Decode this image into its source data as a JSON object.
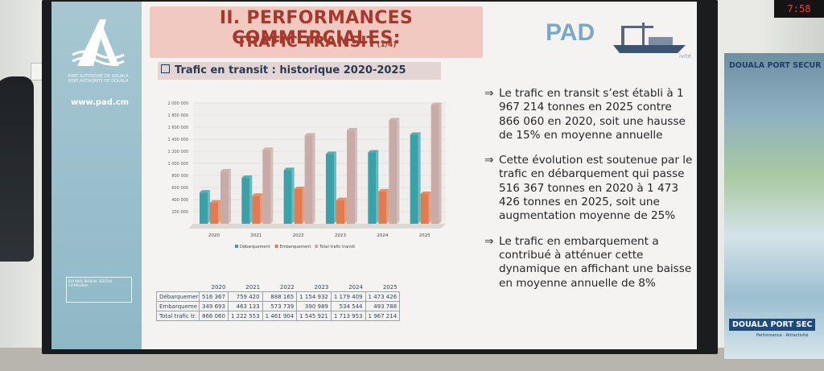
{
  "slide": {
    "title_line1": "II. PERFORMANCES COMMERCIALES:",
    "title_line2": "TRAFIC TRANSIT",
    "title_suffix": "(1/4)",
    "subtitle": "Trafic en transit : historique 2020-2025",
    "url": "www.pad.cm",
    "logo_line1": "PORT AUTONOME DE DOUALA",
    "logo_line2": "PORT AUTHORITY OF DOUALA",
    "brand_word": "PAD",
    "brand_fragment": "ivité",
    "cert_text": "ISO 9001 BUREAU VERITAS Certification"
  },
  "chart_data": {
    "type": "bar",
    "categories": [
      "2020",
      "2021",
      "2022",
      "2023",
      "2024",
      "2025"
    ],
    "series": [
      {
        "name": "Débarquement",
        "color": "#3aa1a8",
        "values": [
          516367,
          759420,
          888165,
          1154932,
          1179409,
          1473426
        ]
      },
      {
        "name": "Embarquement",
        "color": "#e07b52",
        "values": [
          349693,
          463133,
          573739,
          390989,
          534544,
          493788
        ]
      },
      {
        "name": "Total trafic transit",
        "color": "#c8aaa6",
        "values": [
          866060,
          1222553,
          1461904,
          1545921,
          1713953,
          1967214
        ]
      }
    ],
    "y_ticks": [
      "200 000",
      "400 000",
      "600 000",
      "800 000",
      "1 000 000",
      "1 200 000",
      "1 400 000",
      "1 600 000",
      "1 800 000",
      "2 000 000"
    ],
    "ylim": [
      0,
      2000000
    ],
    "legend_position": "bottom",
    "grid": true
  },
  "table": {
    "years": [
      "2020",
      "2021",
      "2022",
      "2023",
      "2024",
      "2025"
    ],
    "rows": [
      {
        "label": "Débarquemer",
        "values": [
          "516 367",
          "759 420",
          "888 165",
          "1 154 932",
          "1 179 409",
          "1 473 426"
        ]
      },
      {
        "label": "Embarqueme",
        "values": [
          "349 693",
          "463 133",
          "573 739",
          "390 989",
          "534 544",
          "493 788"
        ]
      },
      {
        "label": "Total trafic tr.",
        "values": [
          "866 060",
          "1 222 553",
          "1 461 904",
          "1 545 921",
          "1 713 953",
          "1 967 214"
        ]
      }
    ]
  },
  "bullets": [
    {
      "arrow": "⇒",
      "text": "Le trafic en transit s’est établi à 1 967 214 tonnes en 2025 contre 866 060 en 2020, soit une hausse de 15% en moyenne annuelle"
    },
    {
      "arrow": "⇒",
      "text": "Cette évolution est soutenue par le trafic en débarquement qui passe 516 367 tonnes en 2020 à 1 473 426 tonnes en 2025, soit une augmentation moyenne de 25%"
    },
    {
      "arrow": "⇒",
      "text": "Le trafic en embarquement a contribué à atténuer cette dynamique en affichant une baisse en moyenne annuelle de 8%"
    }
  ],
  "banner": {
    "title": "DOUALA PORT SECUR",
    "bottom_title": "DOUALA PORT SEC",
    "bottom_sub": "Performance · Attractivité"
  },
  "clock": {
    "text": "7:58"
  },
  "colors": {
    "title_red": "#a53a2c",
    "title_bg": "#f2c9c0",
    "side_band": "#9dc0cc"
  }
}
